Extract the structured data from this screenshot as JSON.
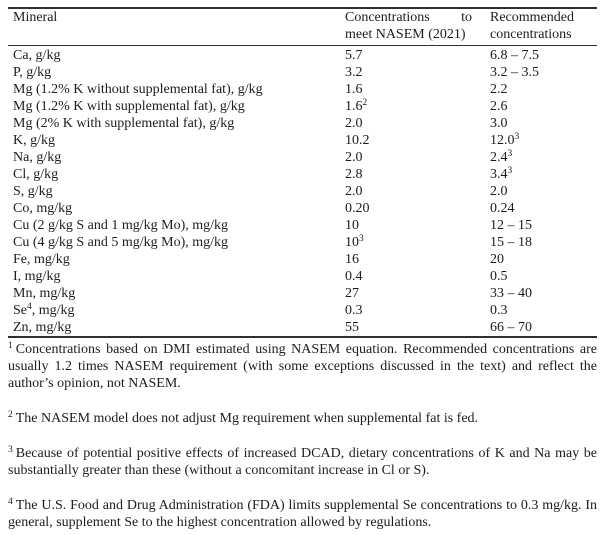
{
  "page": {
    "background": "#ffffff",
    "text_color": "#1c1c1c",
    "rule_color": "#2f2f2f"
  },
  "table": {
    "header": {
      "col1": "Mineral",
      "col2_line1_left": "Concentrations",
      "col2_line1_right": "to",
      "col2_line2": "meet NASEM (2021)",
      "col3_line1": "Recommended",
      "col3_line2": "concentrations"
    },
    "rows": [
      {
        "mineral": "Ca, g/kg",
        "nasem": "5.7",
        "rec": "6.8 – 7.5"
      },
      {
        "mineral": "P, g/kg",
        "nasem": "3.2",
        "rec": "3.2 – 3.5"
      },
      {
        "mineral": "Mg (1.2% K without supplemental fat), g/kg",
        "nasem": "1.6",
        "rec": "2.2"
      },
      {
        "mineral": "Mg (1.2% K with supplemental fat), g/kg",
        "nasem": "1.6",
        "nasem_sup": "2",
        "rec": "2.6"
      },
      {
        "mineral": "Mg (2% K with supplemental fat), g/kg",
        "nasem": "2.0",
        "rec": "3.0"
      },
      {
        "mineral": "K, g/kg",
        "nasem": "10.2",
        "rec": "12.0",
        "rec_sup": "3"
      },
      {
        "mineral": "Na, g/kg",
        "nasem": "2.0",
        "rec": "2.4",
        "rec_sup": "3"
      },
      {
        "mineral": "Cl, g/kg",
        "nasem": "2.8",
        "rec": "3.4",
        "rec_sup": "3"
      },
      {
        "mineral": "S, g/kg",
        "nasem": "2.0",
        "rec": "2.0"
      },
      {
        "mineral": "Co, mg/kg",
        "nasem": "0.20",
        "rec": "0.24"
      },
      {
        "mineral": "Cu (2 g/kg S and 1 mg/kg Mo), mg/kg",
        "nasem": "10",
        "rec": "12 – 15"
      },
      {
        "mineral": "Cu (4 g/kg S and 5 mg/kg Mo), mg/kg",
        "nasem": "10",
        "nasem_sup": "3",
        "rec": "15 – 18"
      },
      {
        "mineral": "Fe, mg/kg",
        "nasem": "16",
        "rec": "20"
      },
      {
        "mineral": "I, mg/kg",
        "nasem": "0.4",
        "rec": "0.5"
      },
      {
        "mineral": "Mn, mg/kg",
        "nasem": "27",
        "rec": "33 – 40"
      },
      {
        "mineral": "Se",
        "mineral_sup": "4",
        "mineral_after": ", mg/kg",
        "nasem": "0.3",
        "rec": "0.3"
      },
      {
        "mineral": "Zn, mg/kg",
        "nasem": "55",
        "rec": "66 – 70"
      }
    ]
  },
  "footnotes": [
    {
      "marker": "1",
      "text": "Concentrations based on DMI estimated using NASEM equation. Recommended concentrations are usually 1.2 times NASEM requirement (with some exceptions discussed in the text) and reflect the author’s opinion, not NASEM."
    },
    {
      "marker": "2",
      "text": "The NASEM model does not adjust Mg requirement when supplemental fat is fed."
    },
    {
      "marker": "3",
      "text": "Because of potential positive effects of increased DCAD, dietary concentrations of K and Na may be substantially greater than these (without a concomitant increase in Cl or S)."
    },
    {
      "marker": "4",
      "text": "The U.S. Food and Drug Administration (FDA) limits supplemental Se concentrations to 0.3 mg/kg. In general, supplement Se to the highest concentration allowed by regulations."
    }
  ]
}
